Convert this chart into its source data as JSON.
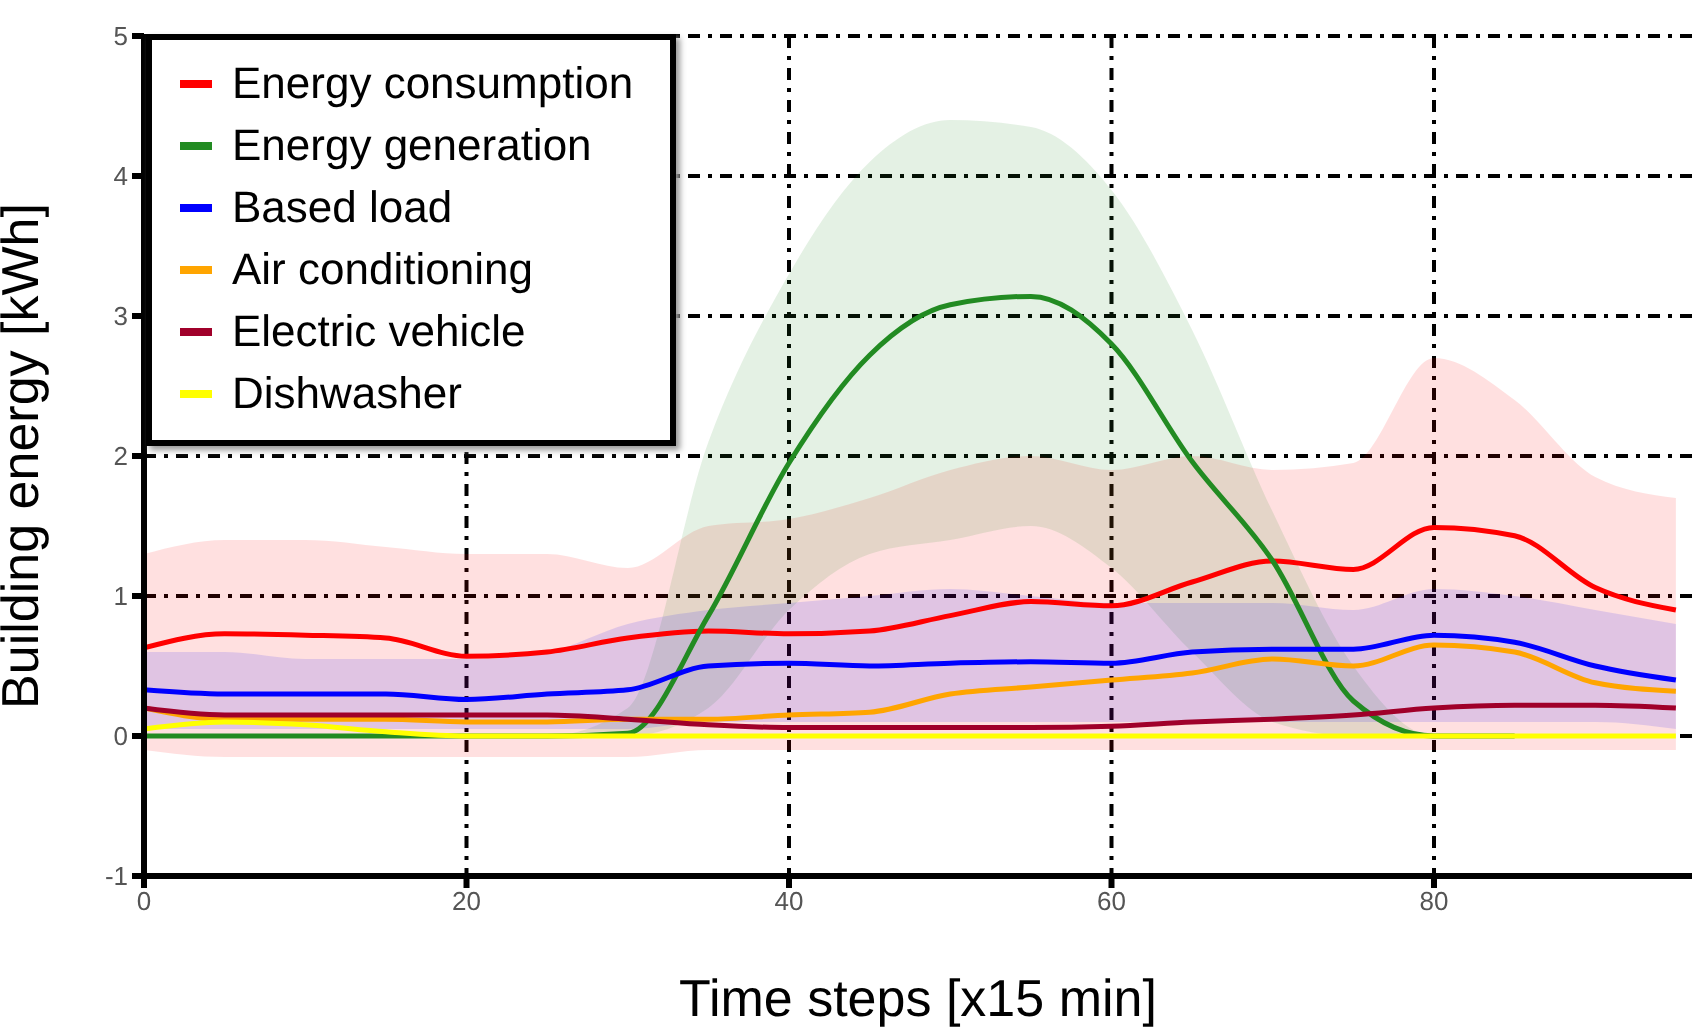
{
  "chart_data": {
    "type": "line",
    "xlabel": "Time steps [x15 min]",
    "ylabel": "Building energy [kWh]",
    "x": [
      0,
      5,
      10,
      15,
      20,
      25,
      30,
      35,
      40,
      45,
      50,
      55,
      60,
      65,
      70,
      75,
      80,
      85,
      90,
      95
    ],
    "xlim": [
      0,
      96
    ],
    "xticks": [
      0,
      20,
      40,
      60,
      80
    ],
    "ylim": [
      -1,
      5
    ],
    "yticks": [
      -1,
      0,
      1,
      2,
      3,
      4,
      5
    ],
    "grid": true,
    "legend": "top left",
    "marker": "none",
    "line_style": "solid",
    "series": [
      {
        "name": "Energy consumption",
        "color": "#ff0000",
        "values": [
          0.63,
          0.73,
          0.72,
          0.7,
          0.57,
          0.6,
          0.7,
          0.75,
          0.73,
          0.75,
          0.86,
          0.96,
          0.93,
          1.1,
          1.25,
          1.19,
          1.49,
          1.43,
          1.06,
          0.9
        ],
        "upper": [
          1.3,
          1.4,
          1.4,
          1.35,
          1.3,
          1.3,
          1.2,
          1.5,
          1.55,
          1.7,
          1.9,
          2.0,
          1.9,
          2.0,
          1.9,
          1.95,
          2.7,
          2.4,
          1.85,
          1.7
        ],
        "lower": [
          -0.1,
          -0.15,
          -0.15,
          -0.15,
          -0.15,
          -0.15,
          -0.15,
          -0.1,
          -0.1,
          -0.1,
          -0.1,
          -0.1,
          -0.1,
          -0.1,
          -0.1,
          -0.1,
          -0.1,
          -0.1,
          -0.1,
          -0.1
        ]
      },
      {
        "name": "Energy generation",
        "color": "#228b22",
        "values": [
          0,
          0,
          0,
          0,
          0,
          0,
          0.02,
          0.86,
          1.95,
          2.72,
          3.08,
          3.14,
          2.8,
          1.96,
          1.25,
          0.25,
          0,
          0,
          null,
          null
        ],
        "upper": [
          0,
          0,
          0,
          0,
          0,
          0,
          0.2,
          2.1,
          3.3,
          4.1,
          4.4,
          4.35,
          3.9,
          2.9,
          1.6,
          0.5,
          0,
          0,
          null,
          null
        ],
        "lower": [
          0,
          0,
          0,
          0,
          0,
          0,
          0,
          0.2,
          0.9,
          1.3,
          1.4,
          1.5,
          1.2,
          0.6,
          0.1,
          0,
          0,
          0,
          null,
          null
        ]
      },
      {
        "name": "Based load",
        "color": "#0000ff",
        "values": [
          0.33,
          0.3,
          0.3,
          0.3,
          0.26,
          0.3,
          0.33,
          0.5,
          0.52,
          0.5,
          0.52,
          0.53,
          0.52,
          0.6,
          0.62,
          0.62,
          0.72,
          0.67,
          0.5,
          0.4
        ],
        "upper": [
          0.6,
          0.6,
          0.55,
          0.55,
          0.55,
          0.6,
          0.8,
          0.9,
          0.95,
          1.0,
          1.05,
          1.0,
          0.95,
          0.95,
          0.95,
          0.9,
          1.05,
          1.0,
          0.9,
          0.8
        ],
        "lower": [
          0.05,
          0.05,
          0.05,
          0.05,
          0.05,
          0.05,
          0.05,
          0.1,
          0.1,
          0.1,
          0.1,
          0.1,
          0.1,
          0.1,
          0.1,
          0.1,
          0.1,
          0.1,
          0.1,
          0.05
        ]
      },
      {
        "name": "Air conditioning",
        "color": "#ffa500",
        "values": [
          0.2,
          0.12,
          0.12,
          0.12,
          0.1,
          0.1,
          0.12,
          0.12,
          0.15,
          0.17,
          0.3,
          0.35,
          0.4,
          0.45,
          0.55,
          0.5,
          0.65,
          0.6,
          0.38,
          0.32
        ]
      },
      {
        "name": "Electric vehicle",
        "color": "#a0002a",
        "values": [
          0.2,
          0.15,
          0.15,
          0.15,
          0.15,
          0.15,
          0.12,
          0.08,
          0.06,
          0.06,
          0.06,
          0.06,
          0.07,
          0.1,
          0.12,
          0.15,
          0.2,
          0.22,
          0.22,
          0.2
        ]
      },
      {
        "name": "Dishwasher",
        "color": "#ffff00",
        "values": [
          0.05,
          0.1,
          0.08,
          0.03,
          0,
          0,
          0,
          0,
          0,
          0,
          0,
          0,
          0,
          0,
          0,
          0,
          0,
          0,
          0,
          0
        ]
      }
    ]
  }
}
